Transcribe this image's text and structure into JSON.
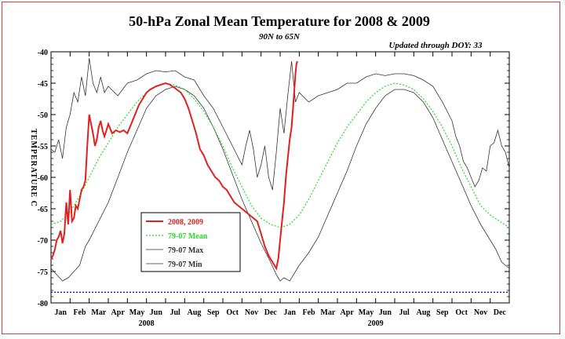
{
  "chart_data": {
    "type": "line",
    "title": "50-hPa Zonal Mean Temperature for 2008 & 2009",
    "subtitle": "90N to 65N",
    "updated_label": "Updated through DOY:  33",
    "ylabel": "TEMPERATURE C",
    "ylim": [
      -80,
      -40
    ],
    "yticks": [
      -40,
      -45,
      -50,
      -55,
      -60,
      -65,
      -70,
      -75,
      -80
    ],
    "xlim": [
      0,
      24
    ],
    "month_labels": [
      "Jan",
      "Feb",
      "Mar",
      "Apr",
      "May",
      "Jun",
      "Jul",
      "Aug",
      "Sep",
      "Oct",
      "Nov",
      "Dec",
      "Jan",
      "Feb",
      "Mar",
      "Apr",
      "May",
      "Jun",
      "Jul",
      "Aug",
      "Sep",
      "Oct",
      "Nov",
      "Dec"
    ],
    "year_labels": [
      {
        "label": "2008",
        "at": 5.0
      },
      {
        "label": "2009",
        "at": 17.0
      }
    ],
    "reference_line": {
      "y": -78.3,
      "color": "#0000cc"
    },
    "legend": {
      "placement": "lower-left",
      "entries": [
        {
          "label": "2008, 2009",
          "color": "#e02020"
        },
        {
          "label": "79-07 Mean",
          "color": "#22dd22"
        },
        {
          "label": "79-07 Max",
          "color": "#333333"
        },
        {
          "label": "79-07 Min",
          "color": "#333333"
        }
      ]
    },
    "series": [
      {
        "name": "2008, 2009",
        "color": "#e02020",
        "x": [
          0.0,
          0.1,
          0.2,
          0.3,
          0.4,
          0.5,
          0.6,
          0.7,
          0.8,
          0.9,
          1.0,
          1.1,
          1.2,
          1.3,
          1.4,
          1.5,
          1.6,
          1.7,
          1.8,
          1.9,
          2.0,
          2.1,
          2.2,
          2.3,
          2.4,
          2.5,
          2.6,
          2.7,
          2.8,
          2.9,
          3.0,
          3.2,
          3.4,
          3.6,
          3.8,
          4.0,
          4.2,
          4.4,
          4.6,
          4.8,
          5.0,
          5.2,
          5.5,
          5.8,
          6.0,
          6.2,
          6.5,
          6.8,
          7.0,
          7.2,
          7.4,
          7.6,
          7.8,
          8.0,
          8.2,
          8.4,
          8.6,
          8.8,
          9.0,
          9.2,
          9.4,
          9.6,
          9.8,
          10.0,
          10.2,
          10.4,
          10.6,
          10.8,
          11.0,
          11.2,
          11.4,
          11.6,
          11.8,
          11.9,
          12.0,
          12.1,
          12.2,
          12.3,
          12.4,
          12.5,
          12.6,
          12.7,
          12.8,
          12.85,
          12.9
        ],
        "y": [
          -73.0,
          -72.5,
          -71.5,
          -70.0,
          -69.5,
          -68.5,
          -70.5,
          -69.0,
          -64.0,
          -67.5,
          -62.0,
          -67.0,
          -66.5,
          -64.5,
          -65.0,
          -63.5,
          -62.0,
          -61.5,
          -60.5,
          -55.0,
          -50.0,
          -51.5,
          -53.0,
          -55.0,
          -54.0,
          -52.0,
          -51.0,
          -52.5,
          -53.5,
          -52.5,
          -51.5,
          -53.0,
          -52.5,
          -52.8,
          -52.5,
          -53.0,
          -51.5,
          -50.0,
          -48.5,
          -47.5,
          -46.5,
          -46.0,
          -45.5,
          -45.2,
          -45.0,
          -45.2,
          -45.8,
          -46.5,
          -47.5,
          -49.0,
          -51.0,
          -53.0,
          -55.5,
          -56.5,
          -58.0,
          -59.0,
          -60.0,
          -60.5,
          -61.5,
          -62.0,
          -63.0,
          -64.0,
          -64.5,
          -65.0,
          -65.5,
          -66.0,
          -66.5,
          -67.0,
          -69.0,
          -71.0,
          -72.5,
          -73.5,
          -74.5,
          -73.0,
          -70.0,
          -67.0,
          -64.0,
          -60.0,
          -57.0,
          -54.0,
          -52.0,
          -48.0,
          -43.5,
          -42.0,
          -41.5
        ]
      },
      {
        "name": "79-07 Mean",
        "color": "#22dd22",
        "x": [
          0.0,
          0.5,
          1.0,
          1.5,
          2.0,
          2.5,
          3.0,
          3.5,
          4.0,
          4.5,
          5.0,
          5.5,
          6.0,
          6.5,
          7.0,
          7.5,
          8.0,
          8.5,
          9.0,
          9.5,
          10.0,
          10.5,
          11.0,
          11.5,
          12.0,
          12.5,
          13.0,
          13.5,
          14.0,
          14.5,
          15.0,
          15.5,
          16.0,
          16.5,
          17.0,
          17.5,
          18.0,
          18.5,
          19.0,
          19.5,
          20.0,
          20.5,
          21.0,
          21.5,
          22.0,
          22.5,
          23.0,
          23.5,
          24.0
        ],
        "y": [
          -67.5,
          -67.0,
          -65.5,
          -63.0,
          -60.0,
          -57.0,
          -54.5,
          -52.0,
          -50.0,
          -48.0,
          -46.5,
          -45.5,
          -45.0,
          -45.3,
          -46.0,
          -47.5,
          -49.5,
          -52.0,
          -55.0,
          -58.5,
          -61.5,
          -64.5,
          -66.5,
          -67.5,
          -68.0,
          -67.5,
          -66.0,
          -63.5,
          -60.5,
          -57.5,
          -54.5,
          -52.0,
          -50.0,
          -48.0,
          -46.5,
          -45.5,
          -45.0,
          -45.3,
          -46.0,
          -47.5,
          -49.5,
          -52.0,
          -55.0,
          -58.5,
          -61.5,
          -64.5,
          -66.0,
          -67.0,
          -68.0
        ]
      },
      {
        "name": "79-07 Max",
        "color": "#333333",
        "x": [
          0.0,
          0.2,
          0.4,
          0.6,
          0.8,
          1.0,
          1.2,
          1.4,
          1.6,
          1.8,
          2.0,
          2.2,
          2.4,
          2.6,
          2.8,
          3.0,
          3.5,
          4.0,
          4.5,
          5.0,
          5.5,
          6.0,
          6.5,
          7.0,
          7.5,
          8.0,
          8.5,
          9.0,
          9.5,
          10.0,
          10.2,
          10.4,
          10.6,
          10.8,
          11.0,
          11.2,
          11.4,
          11.6,
          11.8,
          12.0,
          12.2,
          12.4,
          12.6,
          12.8,
          13.0,
          13.5,
          14.0,
          14.5,
          15.0,
          15.5,
          16.0,
          16.5,
          17.0,
          17.5,
          18.0,
          18.5,
          19.0,
          19.5,
          20.0,
          20.5,
          21.0,
          21.2,
          21.4,
          21.6,
          21.8,
          22.0,
          22.2,
          22.4,
          22.6,
          22.8,
          23.0,
          23.2,
          23.4,
          23.6,
          23.8,
          24.0
        ],
        "y": [
          -55.5,
          -56.0,
          -54.0,
          -57.0,
          -52.0,
          -50.0,
          -46.5,
          -48.0,
          -44.0,
          -47.0,
          -41.0,
          -45.0,
          -46.5,
          -44.0,
          -46.5,
          -45.5,
          -47.0,
          -45.0,
          -44.5,
          -43.5,
          -43.0,
          -43.2,
          -43.0,
          -44.0,
          -44.5,
          -47.0,
          -49.0,
          -52.0,
          -55.0,
          -58.0,
          -55.0,
          -52.5,
          -55.5,
          -60.0,
          -58.0,
          -55.0,
          -60.0,
          -62.0,
          -56.0,
          -49.0,
          -53.0,
          -47.0,
          -41.5,
          -48.0,
          -46.5,
          -48.0,
          -47.0,
          -46.5,
          -46.0,
          -45.0,
          -45.0,
          -44.0,
          -43.5,
          -43.8,
          -43.5,
          -43.5,
          -43.8,
          -44.5,
          -45.5,
          -48.0,
          -51.0,
          -53.5,
          -55.0,
          -57.5,
          -58.5,
          -60.0,
          -61.5,
          -60.5,
          -58.5,
          -59.0,
          -55.0,
          -54.5,
          -52.5,
          -55.0,
          -56.0,
          -58.5
        ]
      },
      {
        "name": "79-07 Min",
        "color": "#333333",
        "x": [
          0.0,
          0.3,
          0.6,
          0.9,
          1.2,
          1.5,
          1.8,
          2.0,
          2.5,
          3.0,
          3.5,
          4.0,
          4.5,
          5.0,
          5.5,
          6.0,
          6.5,
          7.0,
          7.5,
          8.0,
          8.5,
          9.0,
          9.5,
          10.0,
          10.5,
          11.0,
          11.5,
          11.8,
          12.0,
          12.2,
          12.5,
          12.8,
          13.0,
          13.5,
          14.0,
          14.5,
          15.0,
          15.5,
          16.0,
          16.5,
          17.0,
          17.5,
          18.0,
          18.5,
          19.0,
          19.5,
          20.0,
          20.5,
          21.0,
          21.5,
          22.0,
          22.5,
          23.0,
          23.3,
          23.6,
          24.0
        ],
        "y": [
          -74.5,
          -75.5,
          -76.5,
          -76.0,
          -75.0,
          -74.0,
          -71.0,
          -70.0,
          -67.0,
          -64.0,
          -60.0,
          -56.0,
          -52.5,
          -49.0,
          -47.0,
          -46.0,
          -45.5,
          -46.0,
          -47.0,
          -49.0,
          -52.0,
          -55.5,
          -59.5,
          -63.5,
          -67.0,
          -70.5,
          -73.5,
          -75.5,
          -76.5,
          -76.0,
          -76.5,
          -75.0,
          -74.0,
          -72.0,
          -69.5,
          -66.0,
          -62.5,
          -59.0,
          -55.0,
          -51.5,
          -49.0,
          -47.0,
          -46.0,
          -46.0,
          -46.5,
          -48.0,
          -50.5,
          -54.0,
          -57.5,
          -61.0,
          -64.5,
          -67.5,
          -70.0,
          -71.5,
          -73.5,
          -74.5
        ]
      }
    ]
  }
}
